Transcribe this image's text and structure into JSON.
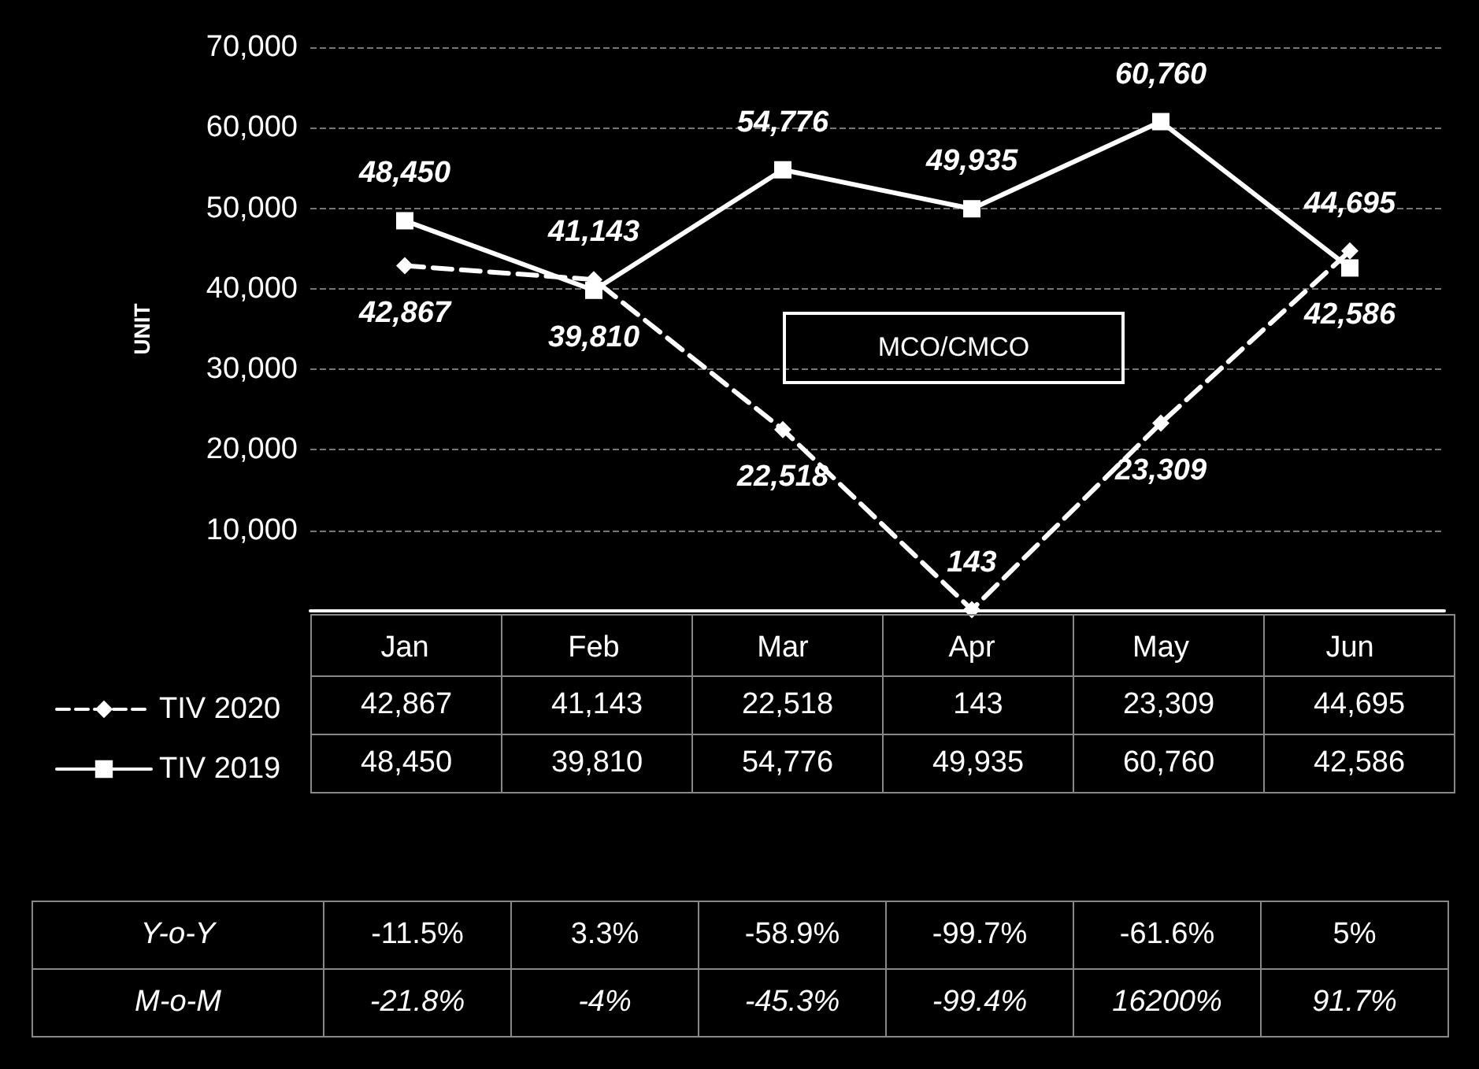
{
  "chart_data": {
    "type": "line",
    "ylabel": "UNIT",
    "categories": [
      "Jan",
      "Feb",
      "Mar",
      "Apr",
      "May",
      "Jun"
    ],
    "series": [
      {
        "name": "TIV 2020",
        "color": "#ffffff",
        "marker": "diamond",
        "line_style": "dashed",
        "values": [
          42867,
          41143,
          22518,
          143,
          23309,
          44695
        ],
        "value_labels": [
          "42,867",
          "41,143",
          "22,518",
          "143",
          "23,309",
          "44,695"
        ]
      },
      {
        "name": "TIV 2019",
        "color": "#ffffff",
        "marker": "square",
        "line_style": "solid",
        "values": [
          48450,
          39810,
          54776,
          49935,
          60760,
          42586
        ],
        "value_labels": [
          "48,450",
          "39,810",
          "54,776",
          "49,935",
          "60,760",
          "42,586"
        ]
      }
    ],
    "ylim": [
      0,
      70000
    ],
    "yticks": [
      {
        "value": 0,
        "label": null
      },
      {
        "value": 10000,
        "label": "10,000"
      },
      {
        "value": 20000,
        "label": "20,000"
      },
      {
        "value": 30000,
        "label": "30,000"
      },
      {
        "value": 40000,
        "label": "40,000"
      },
      {
        "value": 50000,
        "label": "50,000"
      },
      {
        "value": 60000,
        "label": "60,000"
      },
      {
        "value": 70000,
        "label": "70,000"
      }
    ],
    "grid": "y",
    "legend": "bottom left",
    "annotations": [
      "MCO/CMCO",
      "Y-o-Y",
      "-11.5%",
      "3.3%",
      "-58.9%",
      "-99.7%",
      "-61.6%",
      "5%",
      "M-o-M",
      "-21.8%",
      "-4%",
      "-45.3%",
      "-99.4%",
      "16200%",
      "91.7%"
    ]
  }
}
